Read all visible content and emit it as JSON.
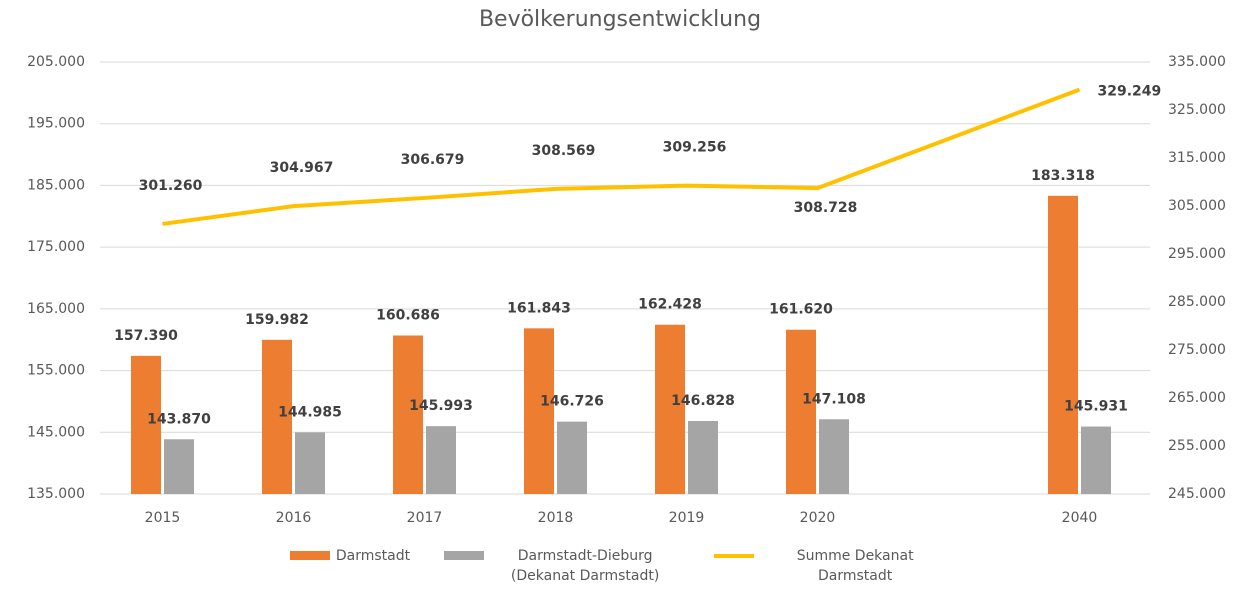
{
  "chart_data": {
    "type": "bar-line",
    "title": "Bevölkerungsentwicklung",
    "categories": [
      "2015",
      "2016",
      "2017",
      "2018",
      "2019",
      "2020",
      "2040"
    ],
    "series": [
      {
        "name": "Darmstadt",
        "color": "#ed7d31",
        "type": "bar",
        "values": [
          157390,
          159982,
          160686,
          161843,
          162428,
          161620,
          183318
        ],
        "value_labels": [
          "157.390",
          "159.982",
          "160.686",
          "161.843",
          "162.428",
          "161.620",
          "183.318"
        ]
      },
      {
        "name": "Darmstadt-Dieburg (Dekanat Darmstadt)",
        "color": "#a5a5a5",
        "type": "bar",
        "values": [
          143870,
          144985,
          145993,
          146726,
          146828,
          147108,
          145931
        ],
        "value_labels": [
          "143.870",
          "144.985",
          "145.993",
          "146.726",
          "146.828",
          "147.108",
          "145.931"
        ]
      },
      {
        "name": "Summe Dekanat Darmstadt",
        "color": "#ffc000",
        "type": "line",
        "axis": "y2",
        "values": [
          301260,
          304967,
          306679,
          308569,
          309256,
          308728,
          329249
        ],
        "value_labels": [
          "301.260",
          "304.967",
          "306.679",
          "308.569",
          "309.256",
          "308.728",
          "329.249"
        ]
      }
    ],
    "ylim": [
      135000,
      205000
    ],
    "yticks": [
      {
        "value": 135000,
        "label": "135.000"
      },
      {
        "value": 145000,
        "label": "145.000"
      },
      {
        "value": 155000,
        "label": "155.000"
      },
      {
        "value": 165000,
        "label": "165.000"
      },
      {
        "value": 175000,
        "label": "175.000"
      },
      {
        "value": 185000,
        "label": "185.000"
      },
      {
        "value": 195000,
        "label": "195.000"
      },
      {
        "value": 205000,
        "label": "205.000"
      }
    ],
    "y2lim": [
      245000,
      335000
    ],
    "y2ticks": [
      {
        "value": 245000,
        "label": "245.000"
      },
      {
        "value": 255000,
        "label": "255.000"
      },
      {
        "value": 265000,
        "label": "265.000"
      },
      {
        "value": 275000,
        "label": "275.000"
      },
      {
        "value": 285000,
        "label": "285.000"
      },
      {
        "value": 295000,
        "label": "295.000"
      },
      {
        "value": 305000,
        "label": "305.000"
      },
      {
        "value": 315000,
        "label": "315.000"
      },
      {
        "value": 325000,
        "label": "325.000"
      },
      {
        "value": 335000,
        "label": "335.000"
      }
    ],
    "grid": true
  }
}
